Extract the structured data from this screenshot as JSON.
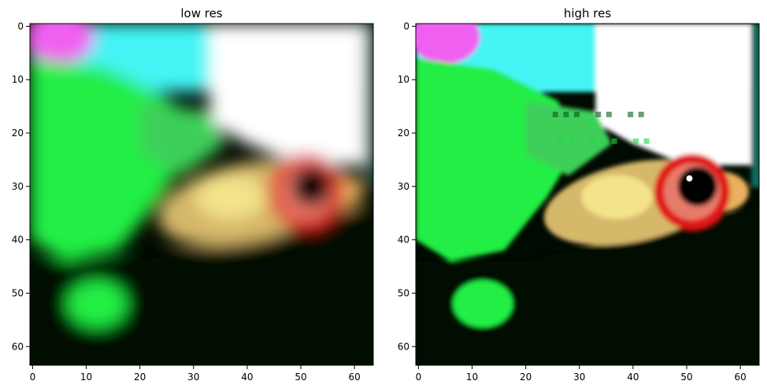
{
  "panels": [
    {
      "title": "low res",
      "x_ticks": [
        "0",
        "10",
        "20",
        "30",
        "40",
        "50",
        "60"
      ],
      "y_ticks": [
        "0",
        "10",
        "20",
        "30",
        "40",
        "50",
        "60"
      ]
    },
    {
      "title": "high res",
      "x_ticks": [
        "0",
        "10",
        "20",
        "30",
        "40",
        "50",
        "60"
      ],
      "y_ticks": [
        "0",
        "10",
        "20",
        "30",
        "40",
        "50",
        "60"
      ]
    }
  ],
  "image_content": {
    "subject": "fish-photo",
    "colors": {
      "background_dark": "#000a00",
      "bright_green": "#22ee44",
      "cyan": "#44f4f4",
      "white": "#ffffff",
      "magenta": "#f060f0",
      "red": "#e01818",
      "tan": "#d6b86a",
      "eye": "#050505"
    }
  }
}
